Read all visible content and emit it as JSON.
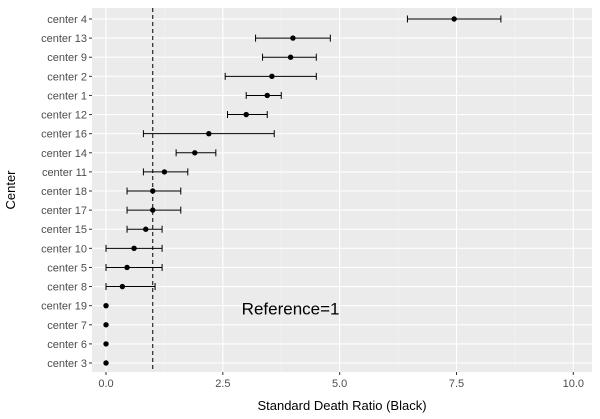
{
  "chart_data": {
    "type": "scatter",
    "subtype": "forest-plot",
    "title": "",
    "xlabel": "Standard Death Ratio (Black)",
    "ylabel": "Center",
    "xlim": [
      -0.3,
      10.4
    ],
    "x_ticks": [
      0.0,
      2.5,
      5.0,
      7.5,
      10.0
    ],
    "x_tick_labels": [
      "0.0",
      "2.5",
      "5.0",
      "7.5",
      "10.0"
    ],
    "grid": true,
    "legend": "none",
    "reference_line": 1,
    "annotation": {
      "text": "Reference=1",
      "x": 3.95,
      "category": "center 8"
    },
    "colors": {
      "panel": "#ebebeb",
      "grid_major": "#ffffff",
      "grid_minor": "#f4f4f4",
      "point": "#000000"
    },
    "categories": [
      "center 4",
      "center 13",
      "center 9",
      "center 2",
      "center 1",
      "center 12",
      "center 16",
      "center 14",
      "center 11",
      "center 18",
      "center 17",
      "center 15",
      "center 10",
      "center 5",
      "center 8",
      "center 19",
      "center 7",
      "center 6",
      "center 3"
    ],
    "points": [
      {
        "center": "center 4",
        "estimate": 7.45,
        "lower": 6.45,
        "upper": 8.45
      },
      {
        "center": "center 13",
        "estimate": 4.0,
        "lower": 3.2,
        "upper": 4.8
      },
      {
        "center": "center 9",
        "estimate": 3.95,
        "lower": 3.35,
        "upper": 4.5
      },
      {
        "center": "center 2",
        "estimate": 3.55,
        "lower": 2.55,
        "upper": 4.5
      },
      {
        "center": "center 1",
        "estimate": 3.45,
        "lower": 3.0,
        "upper": 3.75
      },
      {
        "center": "center 12",
        "estimate": 3.0,
        "lower": 2.6,
        "upper": 3.45
      },
      {
        "center": "center 16",
        "estimate": 2.2,
        "lower": 0.8,
        "upper": 3.6
      },
      {
        "center": "center 14",
        "estimate": 1.9,
        "lower": 1.5,
        "upper": 2.35
      },
      {
        "center": "center 11",
        "estimate": 1.25,
        "lower": 0.8,
        "upper": 1.75
      },
      {
        "center": "center 18",
        "estimate": 1.0,
        "lower": 0.45,
        "upper": 1.6
      },
      {
        "center": "center 17",
        "estimate": 1.0,
        "lower": 0.45,
        "upper": 1.6
      },
      {
        "center": "center 15",
        "estimate": 0.85,
        "lower": 0.45,
        "upper": 1.2
      },
      {
        "center": "center 10",
        "estimate": 0.6,
        "lower": 0.0,
        "upper": 1.2
      },
      {
        "center": "center 5",
        "estimate": 0.45,
        "lower": 0.0,
        "upper": 1.2
      },
      {
        "center": "center 8",
        "estimate": 0.35,
        "lower": 0.0,
        "upper": 1.05
      },
      {
        "center": "center 19",
        "estimate": 0.0,
        "lower": null,
        "upper": null
      },
      {
        "center": "center 7",
        "estimate": 0.0,
        "lower": null,
        "upper": null
      },
      {
        "center": "center 6",
        "estimate": 0.0,
        "lower": null,
        "upper": null
      },
      {
        "center": "center 3",
        "estimate": 0.0,
        "lower": null,
        "upper": null
      }
    ]
  }
}
